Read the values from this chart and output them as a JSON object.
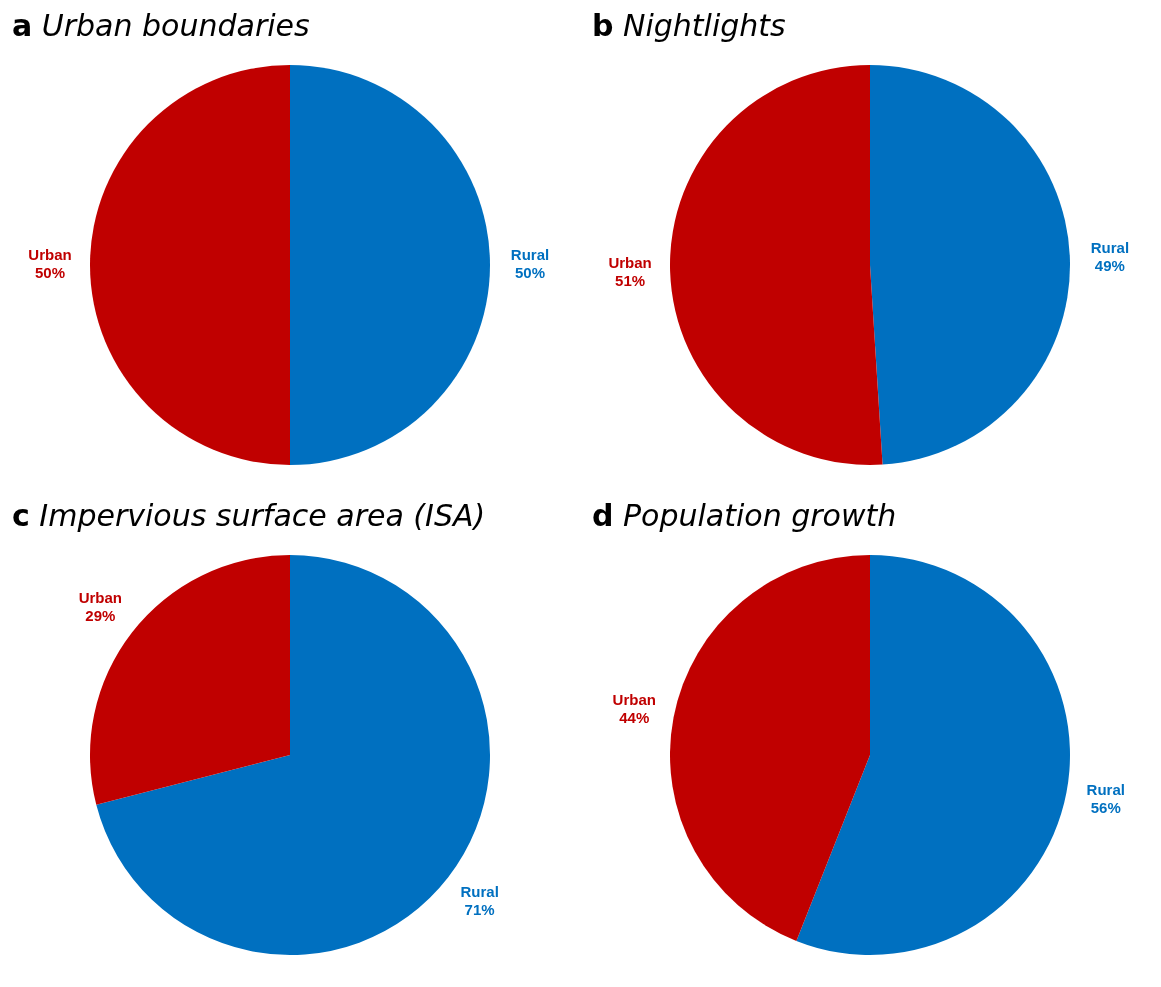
{
  "chart_data": [
    {
      "type": "pie",
      "title": "a Urban boundaries",
      "categories": [
        "Rural",
        "Urban"
      ],
      "values": [
        50,
        50
      ],
      "value_labels": [
        "50%",
        "50%"
      ],
      "colors": [
        "#0070c0",
        "#c00000"
      ],
      "legend": false
    },
    {
      "type": "pie",
      "title": "b Nightlights",
      "categories": [
        "Rural",
        "Urban"
      ],
      "values": [
        49,
        51
      ],
      "value_labels": [
        "49%",
        "51%"
      ],
      "colors": [
        "#0070c0",
        "#c00000"
      ],
      "legend": false
    },
    {
      "type": "pie",
      "title": "c Impervious surface area (ISA)",
      "categories": [
        "Rural",
        "Urban"
      ],
      "values": [
        71,
        29
      ],
      "value_labels": [
        "71%",
        "29%"
      ],
      "colors": [
        "#0070c0",
        "#c00000"
      ],
      "legend": false
    },
    {
      "type": "pie",
      "title": "d Population growth",
      "categories": [
        "Rural",
        "Urban"
      ],
      "values": [
        56,
        44
      ],
      "value_labels": [
        "56%",
        "44%"
      ],
      "colors": [
        "#0070c0",
        "#c00000"
      ],
      "legend": false
    }
  ]
}
